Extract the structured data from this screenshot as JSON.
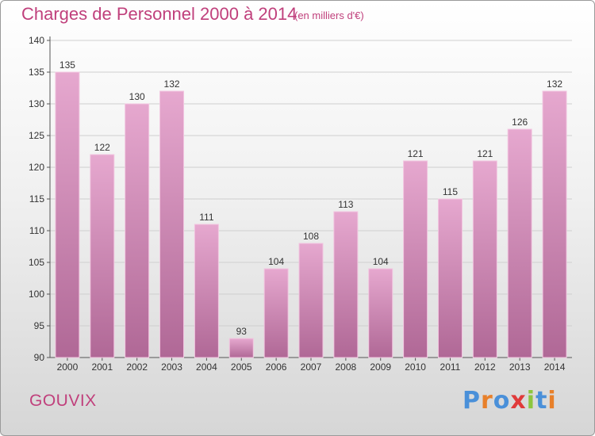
{
  "chart_data": {
    "type": "bar",
    "title": "Charges de Personnel 2000 à 2014",
    "subtitle": "(en milliers d'€)",
    "categories": [
      "2000",
      "2001",
      "2002",
      "2003",
      "2004",
      "2005",
      "2006",
      "2007",
      "2008",
      "2009",
      "2010",
      "2011",
      "2012",
      "2013",
      "2014"
    ],
    "values": [
      135,
      122,
      130,
      132,
      111,
      93,
      104,
      108,
      113,
      104,
      121,
      115,
      121,
      126,
      132
    ],
    "ylim": [
      90,
      140
    ],
    "yticks": [
      90,
      95,
      100,
      105,
      110,
      115,
      120,
      125,
      130,
      135,
      140
    ],
    "grid": true,
    "bar_color": "#d98ab8",
    "bar_color_dark": "#b06896"
  },
  "footer": {
    "city": "GOUVIX",
    "logo": "Proxiti",
    "logo_colors": [
      "#4a90d9",
      "#e8802a",
      "#4a90d9",
      "#e03a3a",
      "#8cc63f",
      "#4a90d9",
      "#e8802a"
    ]
  },
  "colors": {
    "accent": "#c0407c",
    "grid": "#cccccc"
  }
}
